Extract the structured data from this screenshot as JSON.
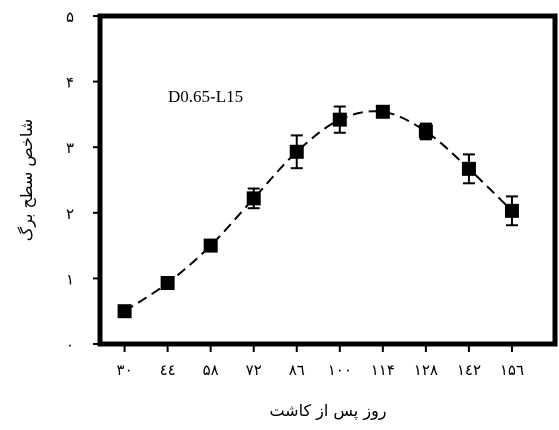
{
  "chart_data": {
    "type": "line",
    "annotation": "D0.65-L15",
    "xlabel": "روز پس از کاشت",
    "ylabel": "شاخص سطح برگ",
    "x_ticks": [
      30,
      44,
      58,
      72,
      86,
      100,
      114,
      128,
      142,
      156
    ],
    "x_tick_labels": [
      "۳۰",
      "٤٤",
      "۵۸",
      "۷۲",
      "۸٦",
      "۱۰۰",
      "۱۱۴",
      "۱۲۸",
      "۱٤۲",
      "۱۵٦"
    ],
    "y_ticks": [
      0,
      1,
      2,
      3,
      4,
      5
    ],
    "y_tick_labels": [
      "۰",
      "۱",
      "۲",
      "۳",
      "۴",
      "۵"
    ],
    "xlim": [
      22,
      170
    ],
    "ylim": [
      0,
      5
    ],
    "grid": false,
    "legend": "none",
    "line_style": "dashed",
    "marker": "filled-square",
    "series": [
      {
        "x": [
          30,
          44,
          58,
          72,
          86,
          100,
          114,
          128,
          142,
          156
        ],
        "y": [
          0.5,
          0.93,
          1.5,
          2.22,
          2.93,
          3.42,
          3.54,
          3.24,
          2.67,
          2.03
        ],
        "error": [
          0,
          0,
          0,
          0.15,
          0.25,
          0.2,
          0,
          0.12,
          0.22,
          0.22
        ]
      }
    ],
    "colors": {
      "ink": "#000000",
      "background": "#ffffff"
    }
  }
}
